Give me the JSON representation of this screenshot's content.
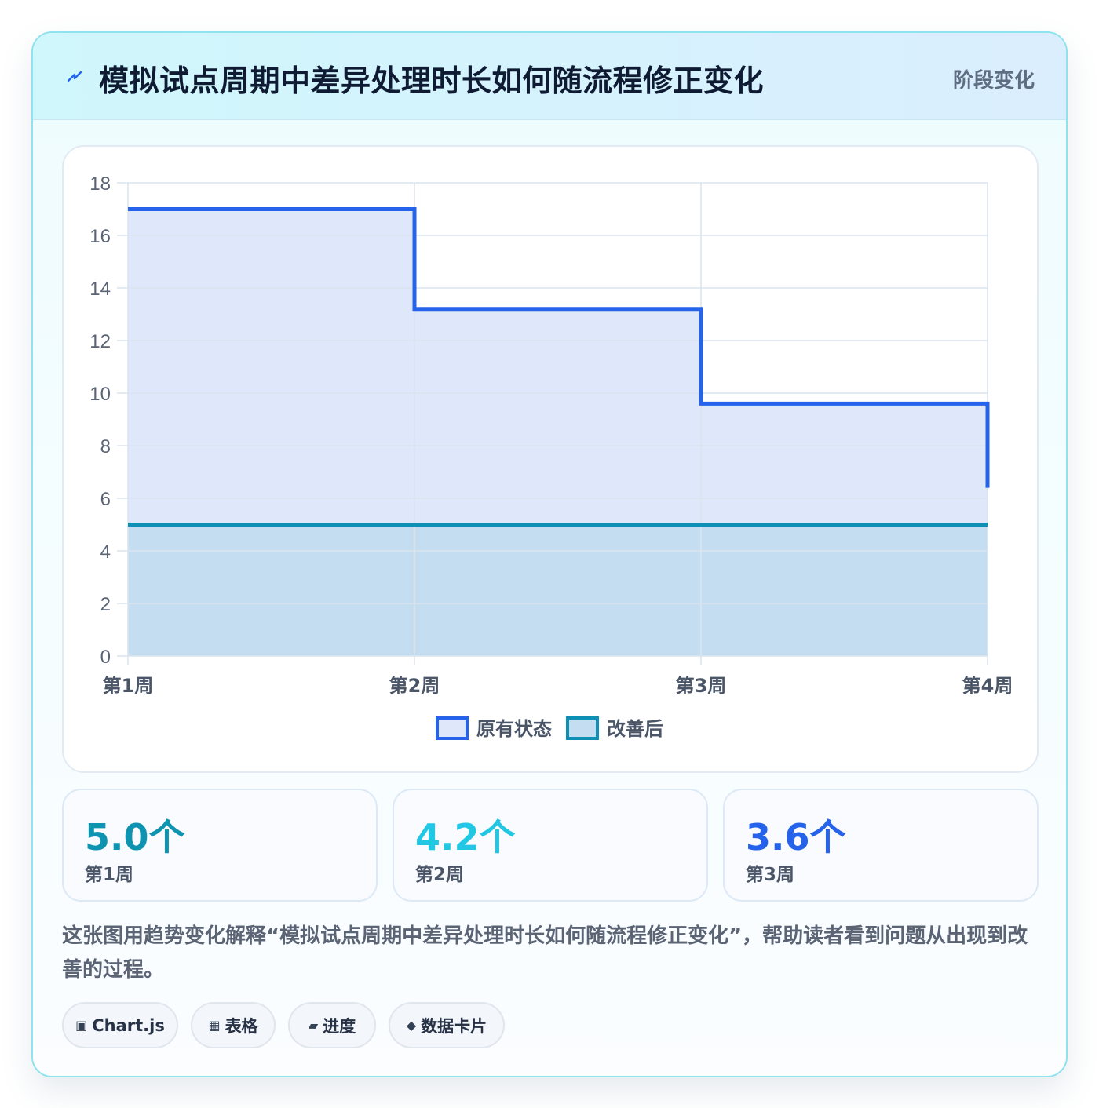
{
  "header": {
    "icon": "lightning-icon",
    "title": "模拟试点周期中差异处理时长如何随流程修正变化",
    "tag": "阶段变化"
  },
  "chart_data": {
    "type": "line",
    "step": "after",
    "categories": [
      "第1周",
      "第2周",
      "第3周",
      "第4周"
    ],
    "series": [
      {
        "name": "原有状态",
        "values": [
          17,
          13.2,
          9.6,
          6.4
        ],
        "color": "#2563eb",
        "fill": "#dfe8fb"
      },
      {
        "name": "改善后",
        "values": [
          5,
          5,
          5,
          5
        ],
        "color": "#0e8fb5",
        "fill": "#c5ddf1"
      }
    ],
    "y_ticks": [
      "0",
      "2",
      "4",
      "6",
      "8",
      "10",
      "12",
      "14",
      "16",
      "18"
    ],
    "ylim": [
      0,
      18
    ],
    "grid": true,
    "legend": "bottom"
  },
  "stats": [
    {
      "value": "5.0个",
      "label": "第1周",
      "color": "#0e94b0"
    },
    {
      "value": "4.2个",
      "label": "第2周",
      "color": "#22c7e3"
    },
    {
      "value": "3.6个",
      "label": "第3周",
      "color": "#2563eb"
    }
  ],
  "description": "这张图用趋势变化解释“模拟试点周期中差异处理时长如何随流程修正变化”，帮助读者看到问题从出现到改善的过程。",
  "chips": [
    {
      "icon": "▣",
      "icon_name": "chart-icon",
      "label": "Chart.js"
    },
    {
      "icon": "▦",
      "icon_name": "table-icon",
      "label": "表格"
    },
    {
      "icon": "▰",
      "icon_name": "progress-icon",
      "label": "进度"
    },
    {
      "icon": "◆",
      "icon_name": "card-icon",
      "label": "数据卡片"
    }
  ]
}
